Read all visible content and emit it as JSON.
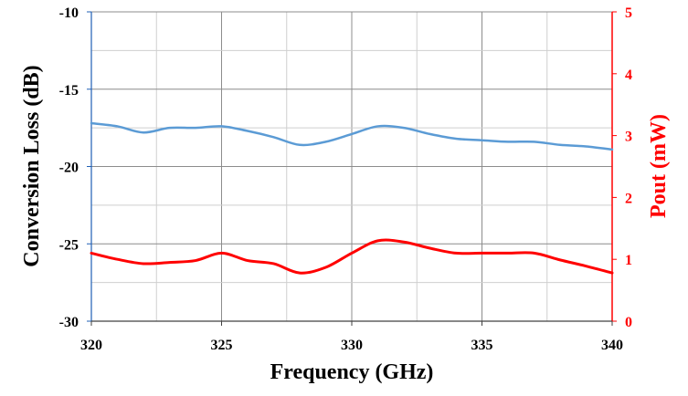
{
  "chart_data": {
    "type": "line",
    "title": "",
    "xlabel": "Frequency  (GHz)",
    "ylabel": "Conversion Loss (dB)",
    "y2label": "Pout (mW)",
    "xlim": [
      320,
      340
    ],
    "ylim": [
      -30,
      -10
    ],
    "y2lim": [
      0,
      5
    ],
    "x_ticks": [
      "320",
      "325",
      "330",
      "335",
      "340"
    ],
    "y_ticks": [
      "-10",
      "-15",
      "-20",
      "-25",
      "-30"
    ],
    "y2_ticks": [
      "5",
      "4",
      "3",
      "2",
      "1",
      "0"
    ],
    "grid": true,
    "legend": "none",
    "series": [
      {
        "axis": "left",
        "color": "#5b9bd5",
        "x": [
          320,
          321,
          322,
          323,
          324,
          325,
          326,
          327,
          328,
          329,
          330,
          331,
          332,
          333,
          334,
          335,
          336,
          337,
          338,
          339,
          340
        ],
        "y": [
          -17.2,
          -17.4,
          -17.8,
          -17.5,
          -17.5,
          -17.4,
          -17.7,
          -18.1,
          -18.6,
          -18.4,
          -17.9,
          -17.4,
          -17.5,
          -17.9,
          -18.2,
          -18.3,
          -18.4,
          -18.4,
          -18.6,
          -18.7,
          -18.9
        ]
      },
      {
        "axis": "right",
        "color": "#ff0000",
        "x": [
          320,
          321,
          322,
          323,
          324,
          325,
          326,
          327,
          328,
          329,
          330,
          331,
          332,
          333,
          334,
          335,
          336,
          337,
          338,
          339,
          340
        ],
        "y": [
          1.1,
          1.0,
          0.93,
          0.95,
          0.98,
          1.1,
          0.98,
          0.93,
          0.78,
          0.87,
          1.1,
          1.3,
          1.28,
          1.18,
          1.1,
          1.1,
          1.1,
          1.1,
          0.99,
          0.89,
          0.78
        ]
      }
    ]
  }
}
